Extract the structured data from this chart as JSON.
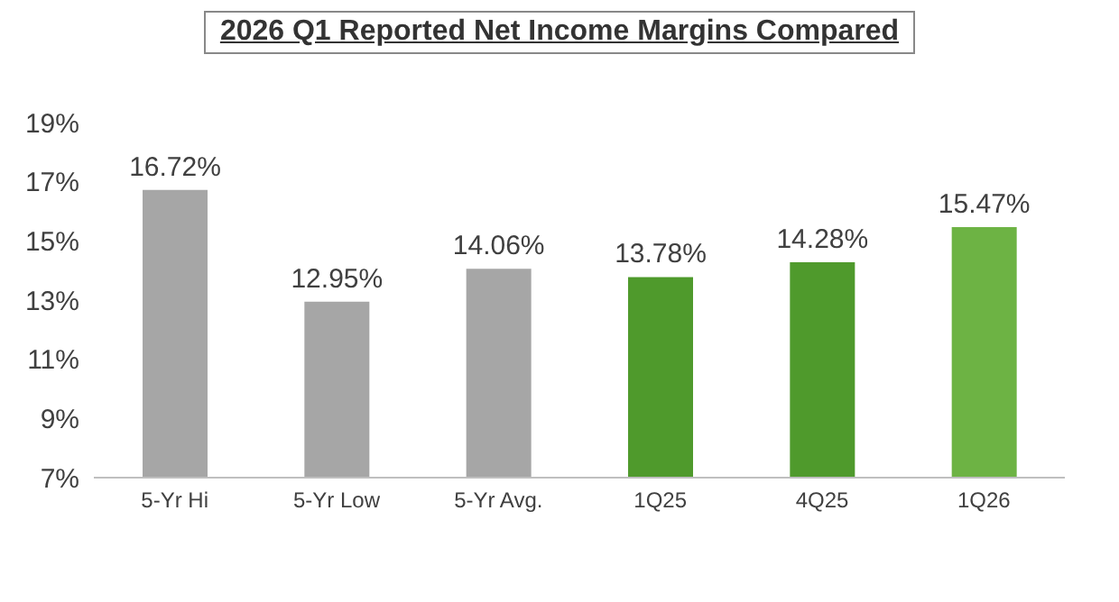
{
  "chart_data": {
    "type": "bar",
    "title": "2026 Q1 Reported Net Income Margins Compared",
    "categories": [
      "5-Yr Hi",
      "5-Yr Low",
      "5-Yr Avg.",
      "1Q25",
      "4Q25",
      "1Q26"
    ],
    "values": [
      16.72,
      12.95,
      14.06,
      13.78,
      14.28,
      15.47
    ],
    "colors": [
      "#a6a6a6",
      "#a6a6a6",
      "#a6a6a6",
      "#4f9a2c",
      "#4f9a2c",
      "#6db344"
    ],
    "value_labels": [
      "16.72%",
      "12.95%",
      "14.06%",
      "13.78%",
      "14.28%",
      "15.47%"
    ],
    "ylim": [
      7,
      19
    ],
    "yticks": [
      {
        "value": 7,
        "label": "7%"
      },
      {
        "value": 9,
        "label": "9%"
      },
      {
        "value": 11,
        "label": "11%"
      },
      {
        "value": 13,
        "label": "13%"
      },
      {
        "value": 15,
        "label": "15%"
      },
      {
        "value": 17,
        "label": "17%"
      },
      {
        "value": 19,
        "label": "19%"
      }
    ],
    "grid": false,
    "legend": false
  }
}
